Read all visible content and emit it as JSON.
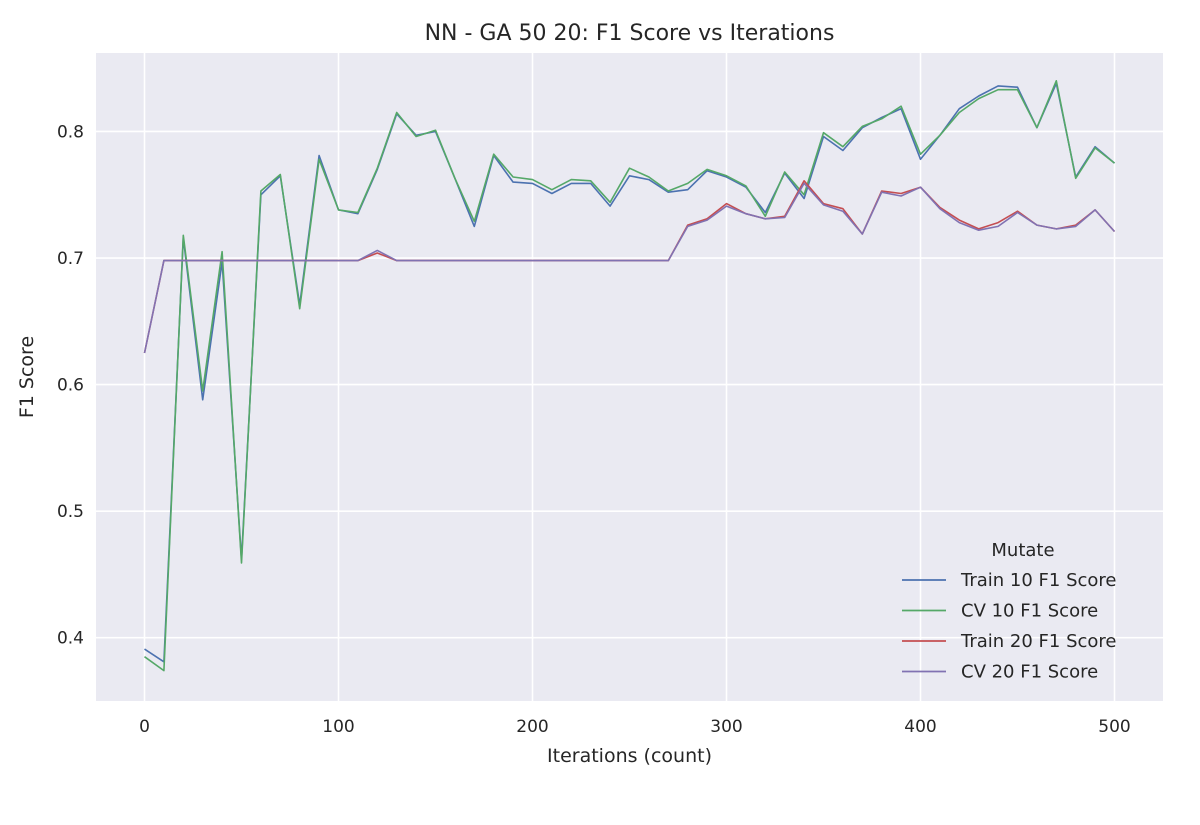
{
  "chart_data": {
    "type": "line",
    "title": "NN - GA 50 20: F1 Score vs Iterations",
    "xlabel": "Iterations (count)",
    "ylabel": "F1 Score",
    "xlim": [
      -25,
      525
    ],
    "ylim": [
      0.35,
      0.862
    ],
    "xticks": [
      0,
      100,
      200,
      300,
      400,
      500
    ],
    "yticks": [
      0.4,
      0.5,
      0.6,
      0.7,
      0.8
    ],
    "ytick_labels": [
      "0.4",
      "0.5",
      "0.6",
      "0.7",
      "0.8"
    ],
    "grid": true,
    "legend": {
      "title": "Mutate",
      "position": "lower-right"
    },
    "x": [
      0,
      10,
      20,
      30,
      40,
      50,
      60,
      70,
      80,
      90,
      100,
      110,
      120,
      130,
      140,
      150,
      160,
      170,
      180,
      190,
      200,
      210,
      220,
      230,
      240,
      250,
      260,
      270,
      280,
      290,
      300,
      310,
      320,
      330,
      340,
      350,
      360,
      370,
      380,
      390,
      400,
      410,
      420,
      430,
      440,
      450,
      460,
      470,
      480,
      490,
      500
    ],
    "series": [
      {
        "name": "Train 10 F1 Score",
        "color": "#4c72b0",
        "values": [
          0.391,
          0.381,
          0.716,
          0.588,
          0.697,
          0.462,
          0.75,
          0.765,
          0.663,
          0.781,
          0.738,
          0.735,
          0.77,
          0.814,
          0.797,
          0.8,
          0.763,
          0.725,
          0.781,
          0.76,
          0.759,
          0.751,
          0.759,
          0.759,
          0.741,
          0.765,
          0.762,
          0.752,
          0.754,
          0.769,
          0.764,
          0.756,
          0.736,
          0.767,
          0.747,
          0.796,
          0.785,
          0.803,
          0.811,
          0.818,
          0.778,
          0.797,
          0.818,
          0.828,
          0.836,
          0.835,
          0.803,
          0.838,
          0.764,
          0.788,
          0.775
        ]
      },
      {
        "name": "CV 10 F1 Score",
        "color": "#55a868",
        "values": [
          0.385,
          0.374,
          0.718,
          0.595,
          0.705,
          0.459,
          0.753,
          0.766,
          0.66,
          0.778,
          0.738,
          0.736,
          0.771,
          0.815,
          0.796,
          0.801,
          0.763,
          0.729,
          0.782,
          0.764,
          0.762,
          0.754,
          0.762,
          0.761,
          0.744,
          0.771,
          0.764,
          0.753,
          0.759,
          0.77,
          0.765,
          0.757,
          0.733,
          0.768,
          0.75,
          0.799,
          0.788,
          0.804,
          0.81,
          0.82,
          0.782,
          0.797,
          0.815,
          0.826,
          0.833,
          0.833,
          0.803,
          0.84,
          0.763,
          0.787,
          0.775
        ]
      },
      {
        "name": "Train 20 F1 Score",
        "color": "#c44e52",
        "values": [
          0.625,
          0.698,
          0.698,
          0.698,
          0.698,
          0.698,
          0.698,
          0.698,
          0.698,
          0.698,
          0.698,
          0.698,
          0.704,
          0.698,
          0.698,
          0.698,
          0.698,
          0.698,
          0.698,
          0.698,
          0.698,
          0.698,
          0.698,
          0.698,
          0.698,
          0.698,
          0.698,
          0.698,
          0.726,
          0.731,
          0.743,
          0.735,
          0.731,
          0.733,
          0.761,
          0.743,
          0.739,
          0.719,
          0.753,
          0.751,
          0.756,
          0.74,
          0.73,
          0.723,
          0.728,
          0.737,
          0.726,
          0.723,
          0.726,
          0.738,
          0.721
        ]
      },
      {
        "name": "CV 20 F1 Score",
        "color": "#8172b2",
        "values": [
          0.625,
          0.698,
          0.698,
          0.698,
          0.698,
          0.698,
          0.698,
          0.698,
          0.698,
          0.698,
          0.698,
          0.698,
          0.706,
          0.698,
          0.698,
          0.698,
          0.698,
          0.698,
          0.698,
          0.698,
          0.698,
          0.698,
          0.698,
          0.698,
          0.698,
          0.698,
          0.698,
          0.698,
          0.725,
          0.73,
          0.741,
          0.735,
          0.731,
          0.732,
          0.759,
          0.742,
          0.737,
          0.719,
          0.752,
          0.749,
          0.756,
          0.739,
          0.728,
          0.722,
          0.725,
          0.736,
          0.726,
          0.723,
          0.725,
          0.738,
          0.721
        ]
      }
    ]
  }
}
